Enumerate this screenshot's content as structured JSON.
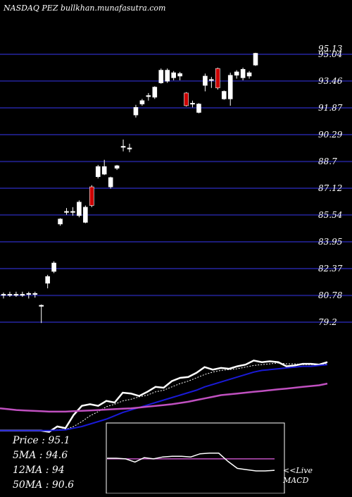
{
  "title": "NASDAQ PEZ bullkhan.munafasutra.com",
  "colors": {
    "background": "#000000",
    "gridline": "#1c1c7a",
    "up_candle": "#ffffff",
    "down_candle": "#cc0000",
    "price_line": "#ffffff",
    "ma_short": "#ffffff",
    "ma_mid": "#1a1ad6",
    "ma_long": "#c050c0",
    "macd_line": "#ffffff",
    "macd_signal": "#c050c0",
    "macd_box_border": "#ffffff"
  },
  "stats": {
    "price": "Price : 95.1",
    "ma5": "5MA : 94.6",
    "ma12": "12MA : 94",
    "ma50": "50MA : 90.6"
  },
  "macd_label": "<<Live MACD",
  "chart_data": [
    {
      "type": "candlestick",
      "title": "NASDAQ PEZ bullkhan.munafasutra.com",
      "y_tick_labels": [
        "95.04",
        "93.46",
        "91.87",
        "90.29",
        "88.7",
        "87.12",
        "85.54",
        "83.95",
        "82.37",
        "80.78",
        "79.2"
      ],
      "y_top_label": "95.13",
      "ylim": [
        79.2,
        95.6
      ],
      "grid": true,
      "candles": [
        {
          "o": 80.8,
          "h": 80.95,
          "l": 80.6,
          "c": 80.85,
          "dir": "up"
        },
        {
          "o": 80.85,
          "h": 81.0,
          "l": 80.7,
          "c": 80.85,
          "dir": "up"
        },
        {
          "o": 80.85,
          "h": 81.0,
          "l": 80.7,
          "c": 80.85,
          "dir": "up"
        },
        {
          "o": 80.85,
          "h": 81.0,
          "l": 80.7,
          "c": 80.85,
          "dir": "up"
        },
        {
          "o": 80.85,
          "h": 81.0,
          "l": 80.6,
          "c": 80.9,
          "dir": "up"
        },
        {
          "o": 80.85,
          "h": 81.0,
          "l": 80.65,
          "c": 80.9,
          "dir": "up"
        },
        {
          "o": 80.2,
          "h": 80.25,
          "l": 79.15,
          "c": 80.15,
          "dir": "up"
        },
        {
          "o": 81.5,
          "h": 82.0,
          "l": 81.2,
          "c": 81.9,
          "dir": "up"
        },
        {
          "o": 82.2,
          "h": 82.8,
          "l": 82.1,
          "c": 82.7,
          "dir": "up"
        },
        {
          "o": 85.0,
          "h": 85.35,
          "l": 84.9,
          "c": 85.3,
          "dir": "up"
        },
        {
          "o": 85.75,
          "h": 85.95,
          "l": 85.55,
          "c": 85.75,
          "dir": "up"
        },
        {
          "o": 85.7,
          "h": 86.0,
          "l": 85.5,
          "c": 85.75,
          "dir": "up"
        },
        {
          "o": 85.5,
          "h": 86.4,
          "l": 85.4,
          "c": 86.3,
          "dir": "up"
        },
        {
          "o": 85.1,
          "h": 86.1,
          "l": 85.05,
          "c": 86.0,
          "dir": "up"
        },
        {
          "o": 87.2,
          "h": 87.3,
          "l": 86.0,
          "c": 86.1,
          "dir": "down"
        },
        {
          "o": 87.8,
          "h": 88.5,
          "l": 87.7,
          "c": 88.4,
          "dir": "up"
        },
        {
          "o": 88.4,
          "h": 88.8,
          "l": 87.9,
          "c": 87.95,
          "dir": "up"
        },
        {
          "o": 87.2,
          "h": 87.8,
          "l": 87.1,
          "c": 87.75,
          "dir": "up"
        },
        {
          "o": 88.3,
          "h": 88.5,
          "l": 88.2,
          "c": 88.45,
          "dir": "up"
        },
        {
          "o": 89.55,
          "h": 90.0,
          "l": 89.3,
          "c": 89.6,
          "dir": "up"
        },
        {
          "o": 89.5,
          "h": 89.75,
          "l": 89.25,
          "c": 89.5,
          "dir": "up"
        },
        {
          "o": 91.9,
          "h": 92.05,
          "l": 91.3,
          "c": 91.45,
          "dir": "up"
        },
        {
          "o": 92.1,
          "h": 92.4,
          "l": 92.0,
          "c": 92.3,
          "dir": "up"
        },
        {
          "o": 92.6,
          "h": 92.75,
          "l": 92.3,
          "c": 92.6,
          "dir": "up"
        },
        {
          "o": 92.5,
          "h": 93.15,
          "l": 92.4,
          "c": 93.1,
          "dir": "up"
        },
        {
          "o": 93.35,
          "h": 94.2,
          "l": 93.3,
          "c": 94.1,
          "dir": "up"
        },
        {
          "o": 94.1,
          "h": 94.2,
          "l": 93.35,
          "c": 93.45,
          "dir": "up"
        },
        {
          "o": 93.65,
          "h": 94.05,
          "l": 93.5,
          "c": 93.95,
          "dir": "up"
        },
        {
          "o": 93.75,
          "h": 94.0,
          "l": 93.5,
          "c": 93.9,
          "dir": "up"
        },
        {
          "o": 92.75,
          "h": 92.8,
          "l": 91.95,
          "c": 92.0,
          "dir": "down"
        },
        {
          "o": 92.1,
          "h": 92.3,
          "l": 91.9,
          "c": 92.15,
          "dir": "up"
        },
        {
          "o": 91.6,
          "h": 92.15,
          "l": 91.55,
          "c": 92.1,
          "dir": "up"
        },
        {
          "o": 93.2,
          "h": 93.9,
          "l": 92.85,
          "c": 93.75,
          "dir": "up"
        },
        {
          "o": 93.5,
          "h": 93.7,
          "l": 93.05,
          "c": 93.55,
          "dir": "up"
        },
        {
          "o": 94.2,
          "h": 94.25,
          "l": 92.95,
          "c": 93.05,
          "dir": "down"
        },
        {
          "o": 92.4,
          "h": 92.9,
          "l": 92.35,
          "c": 92.85,
          "dir": "up"
        },
        {
          "o": 92.4,
          "h": 93.95,
          "l": 92.0,
          "c": 93.8,
          "dir": "up"
        },
        {
          "o": 93.8,
          "h": 94.1,
          "l": 93.6,
          "c": 94.0,
          "dir": "up"
        },
        {
          "o": 93.65,
          "h": 94.25,
          "l": 93.5,
          "c": 94.15,
          "dir": "up"
        },
        {
          "o": 93.75,
          "h": 94.05,
          "l": 93.6,
          "c": 93.95,
          "dir": "up"
        },
        {
          "o": 94.4,
          "h": 95.13,
          "l": 94.35,
          "c": 95.1,
          "dir": "up"
        }
      ]
    },
    {
      "type": "line",
      "series": [
        {
          "name": "Price",
          "values": [
            0.01,
            0.01,
            0.01,
            0.01,
            0.01,
            0.01,
            -0.005,
            0.06,
            0.04,
            0.2,
            0.31,
            0.33,
            0.31,
            0.37,
            0.35,
            0.47,
            0.46,
            0.43,
            0.48,
            0.54,
            0.53,
            0.61,
            0.65,
            0.66,
            0.71,
            0.78,
            0.75,
            0.77,
            0.76,
            0.79,
            0.81,
            0.86,
            0.84,
            0.85,
            0.84,
            0.79,
            0.8,
            0.82,
            0.82,
            0.81,
            0.84
          ]
        },
        {
          "name": "5MA",
          "values": [
            0.01,
            0.01,
            0.01,
            0.01,
            0.01,
            0.01,
            0.006,
            0.02,
            0.025,
            0.06,
            0.12,
            0.19,
            0.24,
            0.3,
            0.33,
            0.37,
            0.39,
            0.42,
            0.44,
            0.48,
            0.5,
            0.54,
            0.58,
            0.61,
            0.65,
            0.69,
            0.72,
            0.74,
            0.75,
            0.76,
            0.78,
            0.8,
            0.81,
            0.82,
            0.83,
            0.82,
            0.82,
            0.81,
            0.81,
            0.81,
            0.82
          ]
        },
        {
          "name": "12MA",
          "values": [
            0.01,
            0.01,
            0.01,
            0.01,
            0.01,
            0.01,
            0.01,
            0.015,
            0.02,
            0.04,
            0.06,
            0.09,
            0.12,
            0.15,
            0.19,
            0.23,
            0.26,
            0.29,
            0.32,
            0.35,
            0.38,
            0.41,
            0.44,
            0.47,
            0.5,
            0.54,
            0.57,
            0.6,
            0.63,
            0.66,
            0.69,
            0.72,
            0.74,
            0.75,
            0.76,
            0.77,
            0.78,
            0.79,
            0.79,
            0.8,
            0.81
          ]
        },
        {
          "name": "50MA",
          "values": [
            0.28,
            0.27,
            0.26,
            0.255,
            0.25,
            0.245,
            0.24,
            0.24,
            0.24,
            0.245,
            0.25,
            0.255,
            0.26,
            0.265,
            0.27,
            0.275,
            0.28,
            0.29,
            0.3,
            0.31,
            0.32,
            0.33,
            0.345,
            0.36,
            0.38,
            0.4,
            0.42,
            0.44,
            0.45,
            0.46,
            0.47,
            0.48,
            0.49,
            0.5,
            0.51,
            0.52,
            0.53,
            0.54,
            0.55,
            0.56,
            0.58
          ]
        }
      ]
    },
    {
      "type": "line",
      "title": "MACD",
      "series": [
        {
          "name": "MACD",
          "values": [
            0.5,
            0.5,
            0.49,
            0.44,
            0.51,
            0.49,
            0.52,
            0.53,
            0.53,
            0.52,
            0.57,
            0.58,
            0.58,
            0.45,
            0.34,
            0.32,
            0.3,
            0.3,
            0.31
          ]
        },
        {
          "name": "signal",
          "values": [
            0.49,
            0.49,
            0.49,
            0.49,
            0.49,
            0.49,
            0.49,
            0.49,
            0.49,
            0.49,
            0.49,
            0.49,
            0.49,
            0.49,
            0.49,
            0.49,
            0.49,
            0.49,
            0.49
          ]
        }
      ]
    }
  ]
}
